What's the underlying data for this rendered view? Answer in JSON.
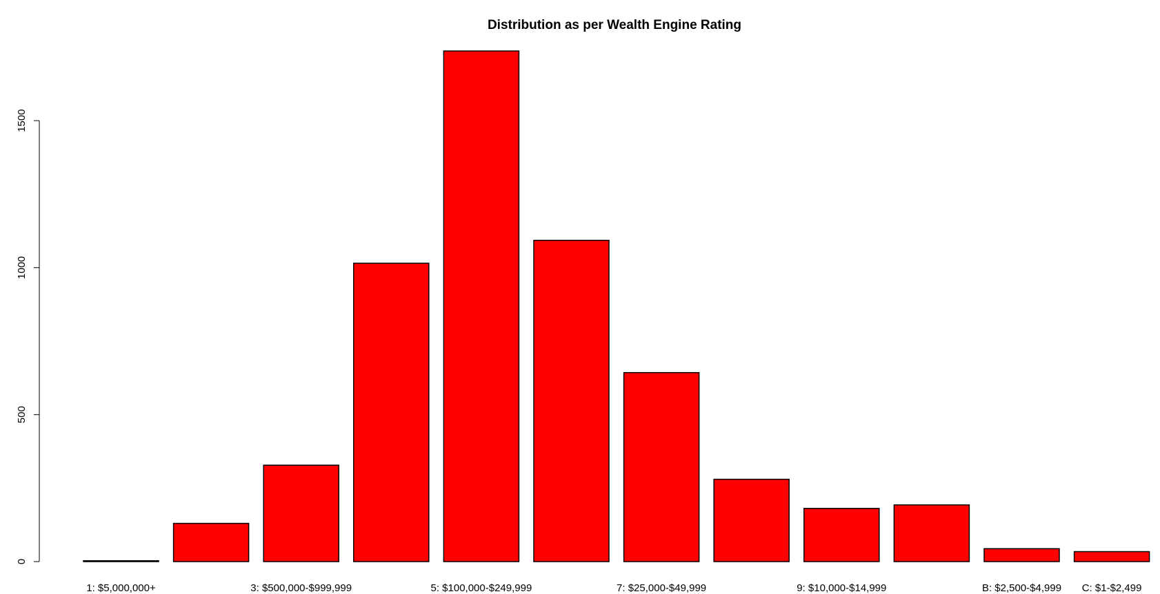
{
  "chart_data": {
    "type": "bar",
    "title": "Distribution as per Wealth Engine Rating",
    "xlabel": "",
    "ylabel": "",
    "categories": [
      "1: $5,000,000+",
      "",
      "3: $500,000-$999,999",
      "",
      "5: $100,000-$249,999",
      "",
      "7: $25,000-$49,999",
      "",
      "9: $10,000-$14,999",
      "",
      "B: $2,500-$4,999",
      "C: $1-$2,499"
    ],
    "values": [
      3,
      130,
      328,
      1015,
      1737,
      1093,
      643,
      280,
      181,
      193,
      44,
      34
    ],
    "ylim": [
      0,
      1737
    ],
    "yticks": [
      0,
      500,
      1000,
      1500
    ],
    "bar_color": "#ff0000",
    "border_color": "#000000",
    "grid": false,
    "legend": "none"
  }
}
